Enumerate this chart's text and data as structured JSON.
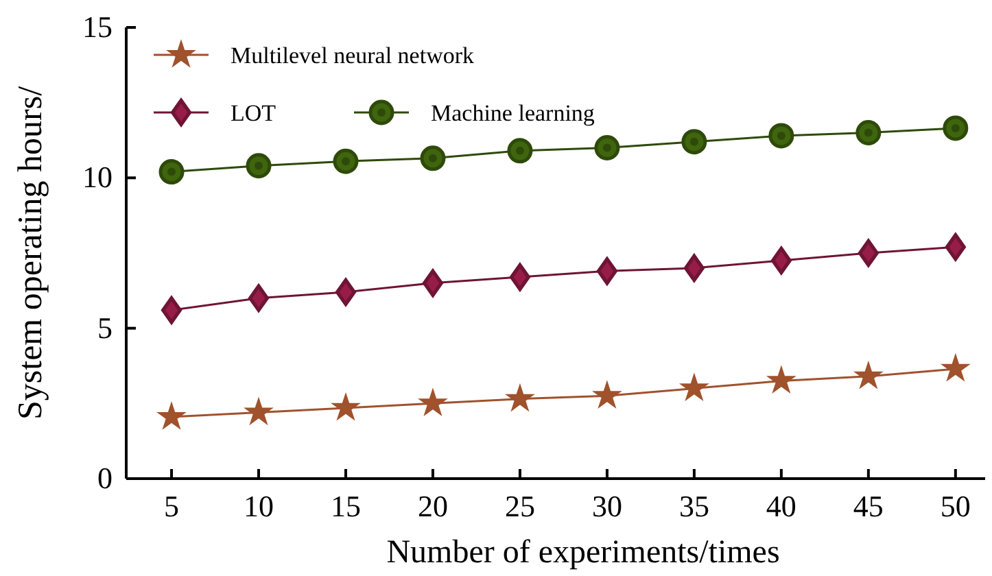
{
  "chart_data": {
    "type": "line",
    "xlabel": "Number of experiments/times",
    "ylabel": "System operating hours/",
    "x": [
      5,
      10,
      15,
      20,
      25,
      30,
      35,
      40,
      45,
      50
    ],
    "xlim": [
      2.4,
      51.7
    ],
    "xticks": [
      5,
      10,
      15,
      20,
      25,
      30,
      35,
      40,
      45,
      50
    ],
    "ylim": [
      0,
      15
    ],
    "yticks": [
      0,
      5,
      10,
      15
    ],
    "grid": false,
    "legend": "top left",
    "series": [
      {
        "name": "Multilevel neural network",
        "color": "#a0522d",
        "marker": "star",
        "values": [
          2.05,
          2.2,
          2.35,
          2.5,
          2.65,
          2.75,
          3.0,
          3.25,
          3.4,
          3.65
        ]
      },
      {
        "name": "LOT",
        "color": "#6e1434",
        "marker": "diamond",
        "values": [
          5.6,
          6.0,
          6.2,
          6.5,
          6.7,
          6.9,
          7.0,
          7.25,
          7.5,
          7.7
        ]
      },
      {
        "name": "Machine learning",
        "color": "#2e4a0a",
        "marker": "circle",
        "values": [
          10.2,
          10.4,
          10.55,
          10.65,
          10.9,
          11.0,
          11.2,
          11.4,
          11.5,
          11.65
        ]
      }
    ]
  }
}
